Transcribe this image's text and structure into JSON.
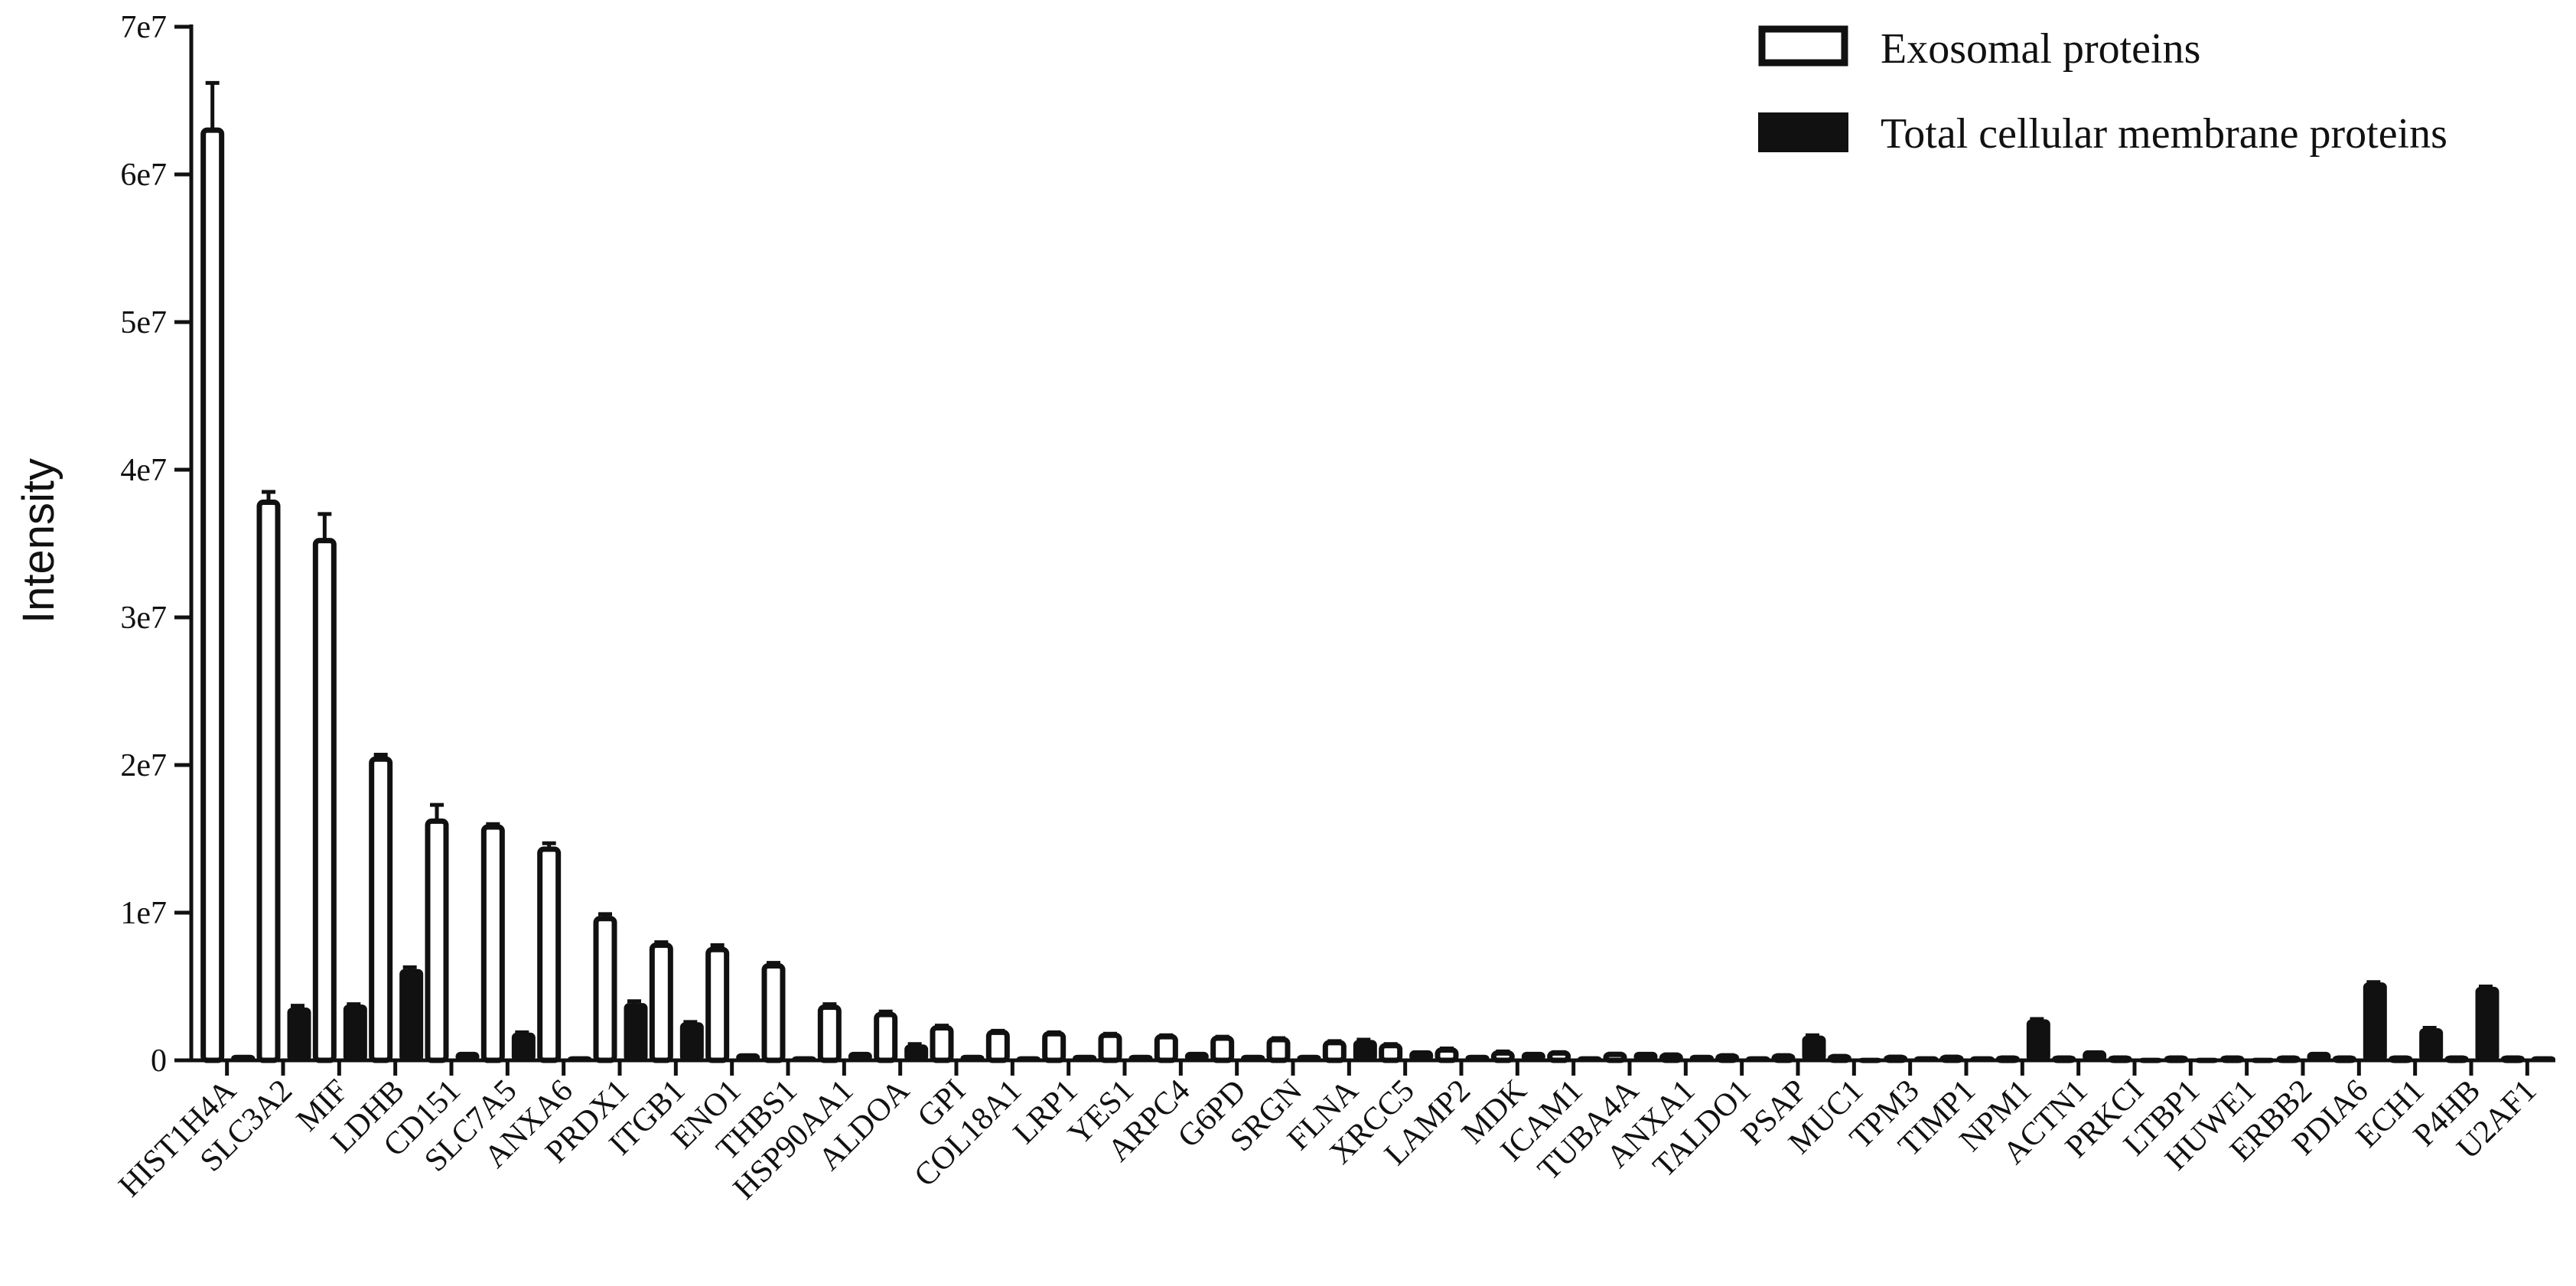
{
  "chart_data": {
    "type": "bar",
    "title": "",
    "xlabel": "",
    "ylabel": "Intensity",
    "ylim": [
      0,
      70000000
    ],
    "yticks": [
      0,
      10000000,
      20000000,
      30000000,
      40000000,
      50000000,
      60000000,
      70000000
    ],
    "ytick_labels": [
      "0",
      "1e7",
      "2e7",
      "3e7",
      "4e7",
      "5e7",
      "6e7",
      "7e7"
    ],
    "grid": false,
    "legend_position": "top-right",
    "categories": [
      "HIST1H4A",
      "SLC3A2",
      "MIF",
      "LDHB",
      "CD151",
      "SLC7A5",
      "ANXA6",
      "PRDX1",
      "ITGB1",
      "ENO1",
      "THBS1",
      "HSP90AA1",
      "ALDOA",
      "GPI",
      "COL18A1",
      "LRP1",
      "YES1",
      "ARPC4",
      "G6PD",
      "SRGN",
      "FLNA",
      "XRCC5",
      "LAMP2",
      "MDK",
      "ICAM1",
      "TUBA4A",
      "ANXA1",
      "TALDO1",
      "PSAP",
      "MUC1",
      "TPM3",
      "TIMP1",
      "NPM1",
      "ACTN1",
      "PRKCI",
      "LTBP1",
      "HUWE1",
      "ERBB2",
      "PDIA6",
      "ECH1",
      "P4HB",
      "U2AF1"
    ],
    "series": [
      {
        "name": "Exosomal proteins",
        "fill": "#ffffff",
        "stroke": "#111111",
        "values": [
          63000000,
          37800000,
          35200000,
          20400000,
          16200000,
          15800000,
          14300000,
          9600000,
          7800000,
          7500000,
          6400000,
          3600000,
          3100000,
          2200000,
          1900000,
          1800000,
          1700000,
          1600000,
          1500000,
          1400000,
          1200000,
          1000000,
          700000,
          500000,
          500000,
          400000,
          350000,
          300000,
          300000,
          250000,
          200000,
          200000,
          150000,
          150000,
          150000,
          150000,
          150000,
          150000,
          150000,
          150000,
          150000,
          150000
        ],
        "errors": [
          3200000,
          700000,
          1800000,
          300000,
          1100000,
          200000,
          400000,
          300000,
          200000,
          300000,
          200000,
          200000,
          200000,
          150000,
          100000,
          100000,
          100000,
          100000,
          100000,
          100000,
          100000,
          100000,
          100000,
          100000,
          50000,
          50000,
          50000,
          50000,
          50000,
          50000,
          50000,
          50000,
          50000,
          50000,
          50000,
          50000,
          50000,
          50000,
          50000,
          50000,
          50000,
          50000
        ]
      },
      {
        "name": "Total cellular membrane proteins",
        "fill": "#111111",
        "stroke": "#111111",
        "values": [
          300000,
          3500000,
          3700000,
          6100000,
          500000,
          1800000,
          200000,
          3800000,
          2500000,
          400000,
          200000,
          500000,
          1000000,
          300000,
          200000,
          300000,
          300000,
          500000,
          300000,
          300000,
          1300000,
          600000,
          300000,
          500000,
          200000,
          500000,
          300000,
          200000,
          1600000,
          100000,
          200000,
          200000,
          2700000,
          600000,
          100000,
          100000,
          100000,
          500000,
          5200000,
          2100000,
          4900000,
          200000
        ],
        "errors": [
          0,
          200000,
          100000,
          200000,
          0,
          100000,
          0,
          200000,
          100000,
          0,
          0,
          0,
          100000,
          0,
          0,
          0,
          0,
          0,
          0,
          0,
          100000,
          0,
          0,
          0,
          0,
          0,
          0,
          0,
          100000,
          0,
          0,
          0,
          100000,
          0,
          0,
          0,
          0,
          0,
          100000,
          100000,
          100000,
          0
        ]
      }
    ]
  }
}
